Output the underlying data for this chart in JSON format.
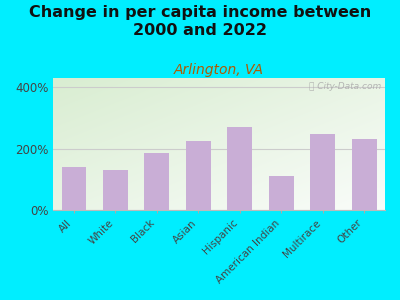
{
  "title": "Change in per capita income between\n2000 and 2022",
  "subtitle": "Arlington, VA",
  "watermark": "ⓘ City-Data.com",
  "categories": [
    "All",
    "White",
    "Black",
    "Asian",
    "Hispanic",
    "American Indian",
    "Multirace",
    "Other"
  ],
  "values": [
    140,
    130,
    185,
    225,
    270,
    110,
    248,
    232
  ],
  "bar_color": "#c9aed6",
  "background_outer": "#00eeff",
  "plot_bg_green": "#d6ecd2",
  "plot_bg_white": "#f8faf0",
  "title_fontsize": 11.5,
  "subtitle_fontsize": 10,
  "subtitle_color": "#b05a00",
  "title_color": "#111111",
  "ytick_labels": [
    "0%",
    "200%",
    "400%"
  ],
  "ytick_values": [
    0,
    200,
    400
  ],
  "ylim": [
    0,
    430
  ],
  "grid_color": "#cccccc"
}
